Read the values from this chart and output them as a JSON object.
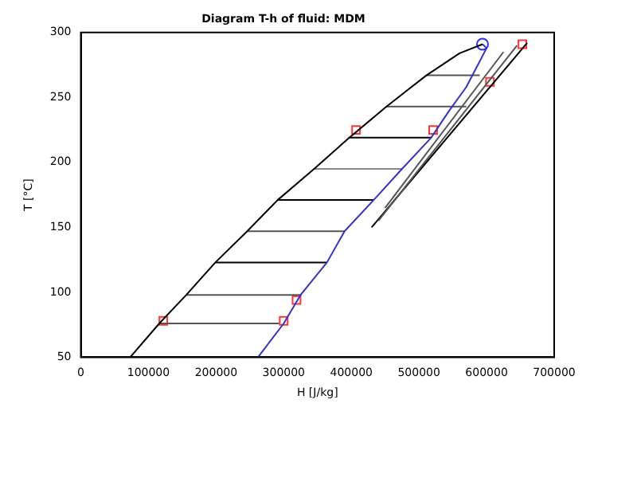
{
  "chart_data": {
    "type": "line",
    "title": "Diagram T-h of fluid: MDM",
    "xlabel": "H [J/kg]",
    "ylabel": "T [°C]",
    "xlim": [
      0,
      700000
    ],
    "xticks": [
      0,
      100000,
      200000,
      300000,
      400000,
      500000,
      600000,
      700000
    ],
    "ylim": [
      50,
      300
    ],
    "yticks": [
      50,
      100,
      150,
      200,
      250,
      300
    ],
    "grid": false,
    "legend": false,
    "series": [
      {
        "type": "line",
        "color": "#000000",
        "marker": "none",
        "x": [
          73000,
          116000,
          156000,
          199000,
          246000,
          291000,
          345000,
          397000,
          452000,
          511000,
          560000,
          594000
        ],
        "values": [
          50,
          76,
          98,
          123,
          147,
          171,
          195,
          219,
          243,
          267,
          284,
          291
        ]
      },
      {
        "type": "line",
        "color": "#3333cc",
        "marker": "none",
        "x": [
          262000,
          300000,
          325000,
          364000,
          390000,
          433000,
          475000,
          518000,
          545000,
          570000,
          590000,
          600000,
          594000
        ],
        "values": [
          50,
          76,
          98,
          123,
          147,
          171,
          195,
          219,
          240,
          258,
          278,
          288,
          291
        ]
      },
      {
        "type": "line",
        "color": "#555555",
        "marker": "none",
        "x": [
          116000,
          293000
        ],
        "values": [
          76,
          76
        ]
      },
      {
        "type": "line",
        "color": "#555555",
        "marker": "none",
        "x": [
          156000,
          326000
        ],
        "values": [
          98,
          98
        ]
      },
      {
        "type": "line",
        "color": "#000000",
        "marker": "none",
        "x": [
          199000,
          364000
        ],
        "values": [
          123,
          123
        ]
      },
      {
        "type": "line",
        "color": "#555555",
        "marker": "none",
        "x": [
          246000,
          390000
        ],
        "values": [
          147,
          147
        ]
      },
      {
        "type": "line",
        "color": "#000000",
        "marker": "none",
        "x": [
          291000,
          433000
        ],
        "values": [
          171,
          171
        ]
      },
      {
        "type": "line",
        "color": "#888888",
        "marker": "none",
        "x": [
          345000,
          475000
        ],
        "values": [
          195,
          195
        ]
      },
      {
        "type": "line",
        "color": "#000000",
        "marker": "none",
        "x": [
          397000,
          518000
        ],
        "values": [
          219,
          219
        ]
      },
      {
        "type": "line",
        "color": "#555555",
        "marker": "none",
        "x": [
          452000,
          570000
        ],
        "values": [
          243,
          243
        ]
      },
      {
        "type": "line",
        "color": "#555555",
        "marker": "none",
        "x": [
          511000,
          590000
        ],
        "values": [
          267,
          267
        ]
      },
      {
        "type": "line",
        "color": "#555555",
        "marker": "none",
        "x": [
          450000,
          625000
        ],
        "values": [
          165,
          285
        ]
      },
      {
        "type": "line",
        "color": "#555555",
        "marker": "none",
        "x": [
          440000,
          645000
        ],
        "values": [
          155,
          290
        ]
      },
      {
        "type": "line",
        "color": "#000000",
        "marker": "none",
        "x": [
          430000,
          660000
        ],
        "values": [
          150,
          292
        ]
      },
      {
        "type": "scatter",
        "color": "#ff3333",
        "marker": "square",
        "x": [
          122000,
          300000,
          319000,
          407000,
          521000,
          605000,
          653000
        ],
        "values": [
          78,
          78,
          94,
          225,
          225,
          262,
          291
        ]
      },
      {
        "type": "scatter",
        "color": "#3333ff",
        "marker": "circle",
        "x": [
          594000
        ],
        "values": [
          291
        ]
      }
    ]
  }
}
